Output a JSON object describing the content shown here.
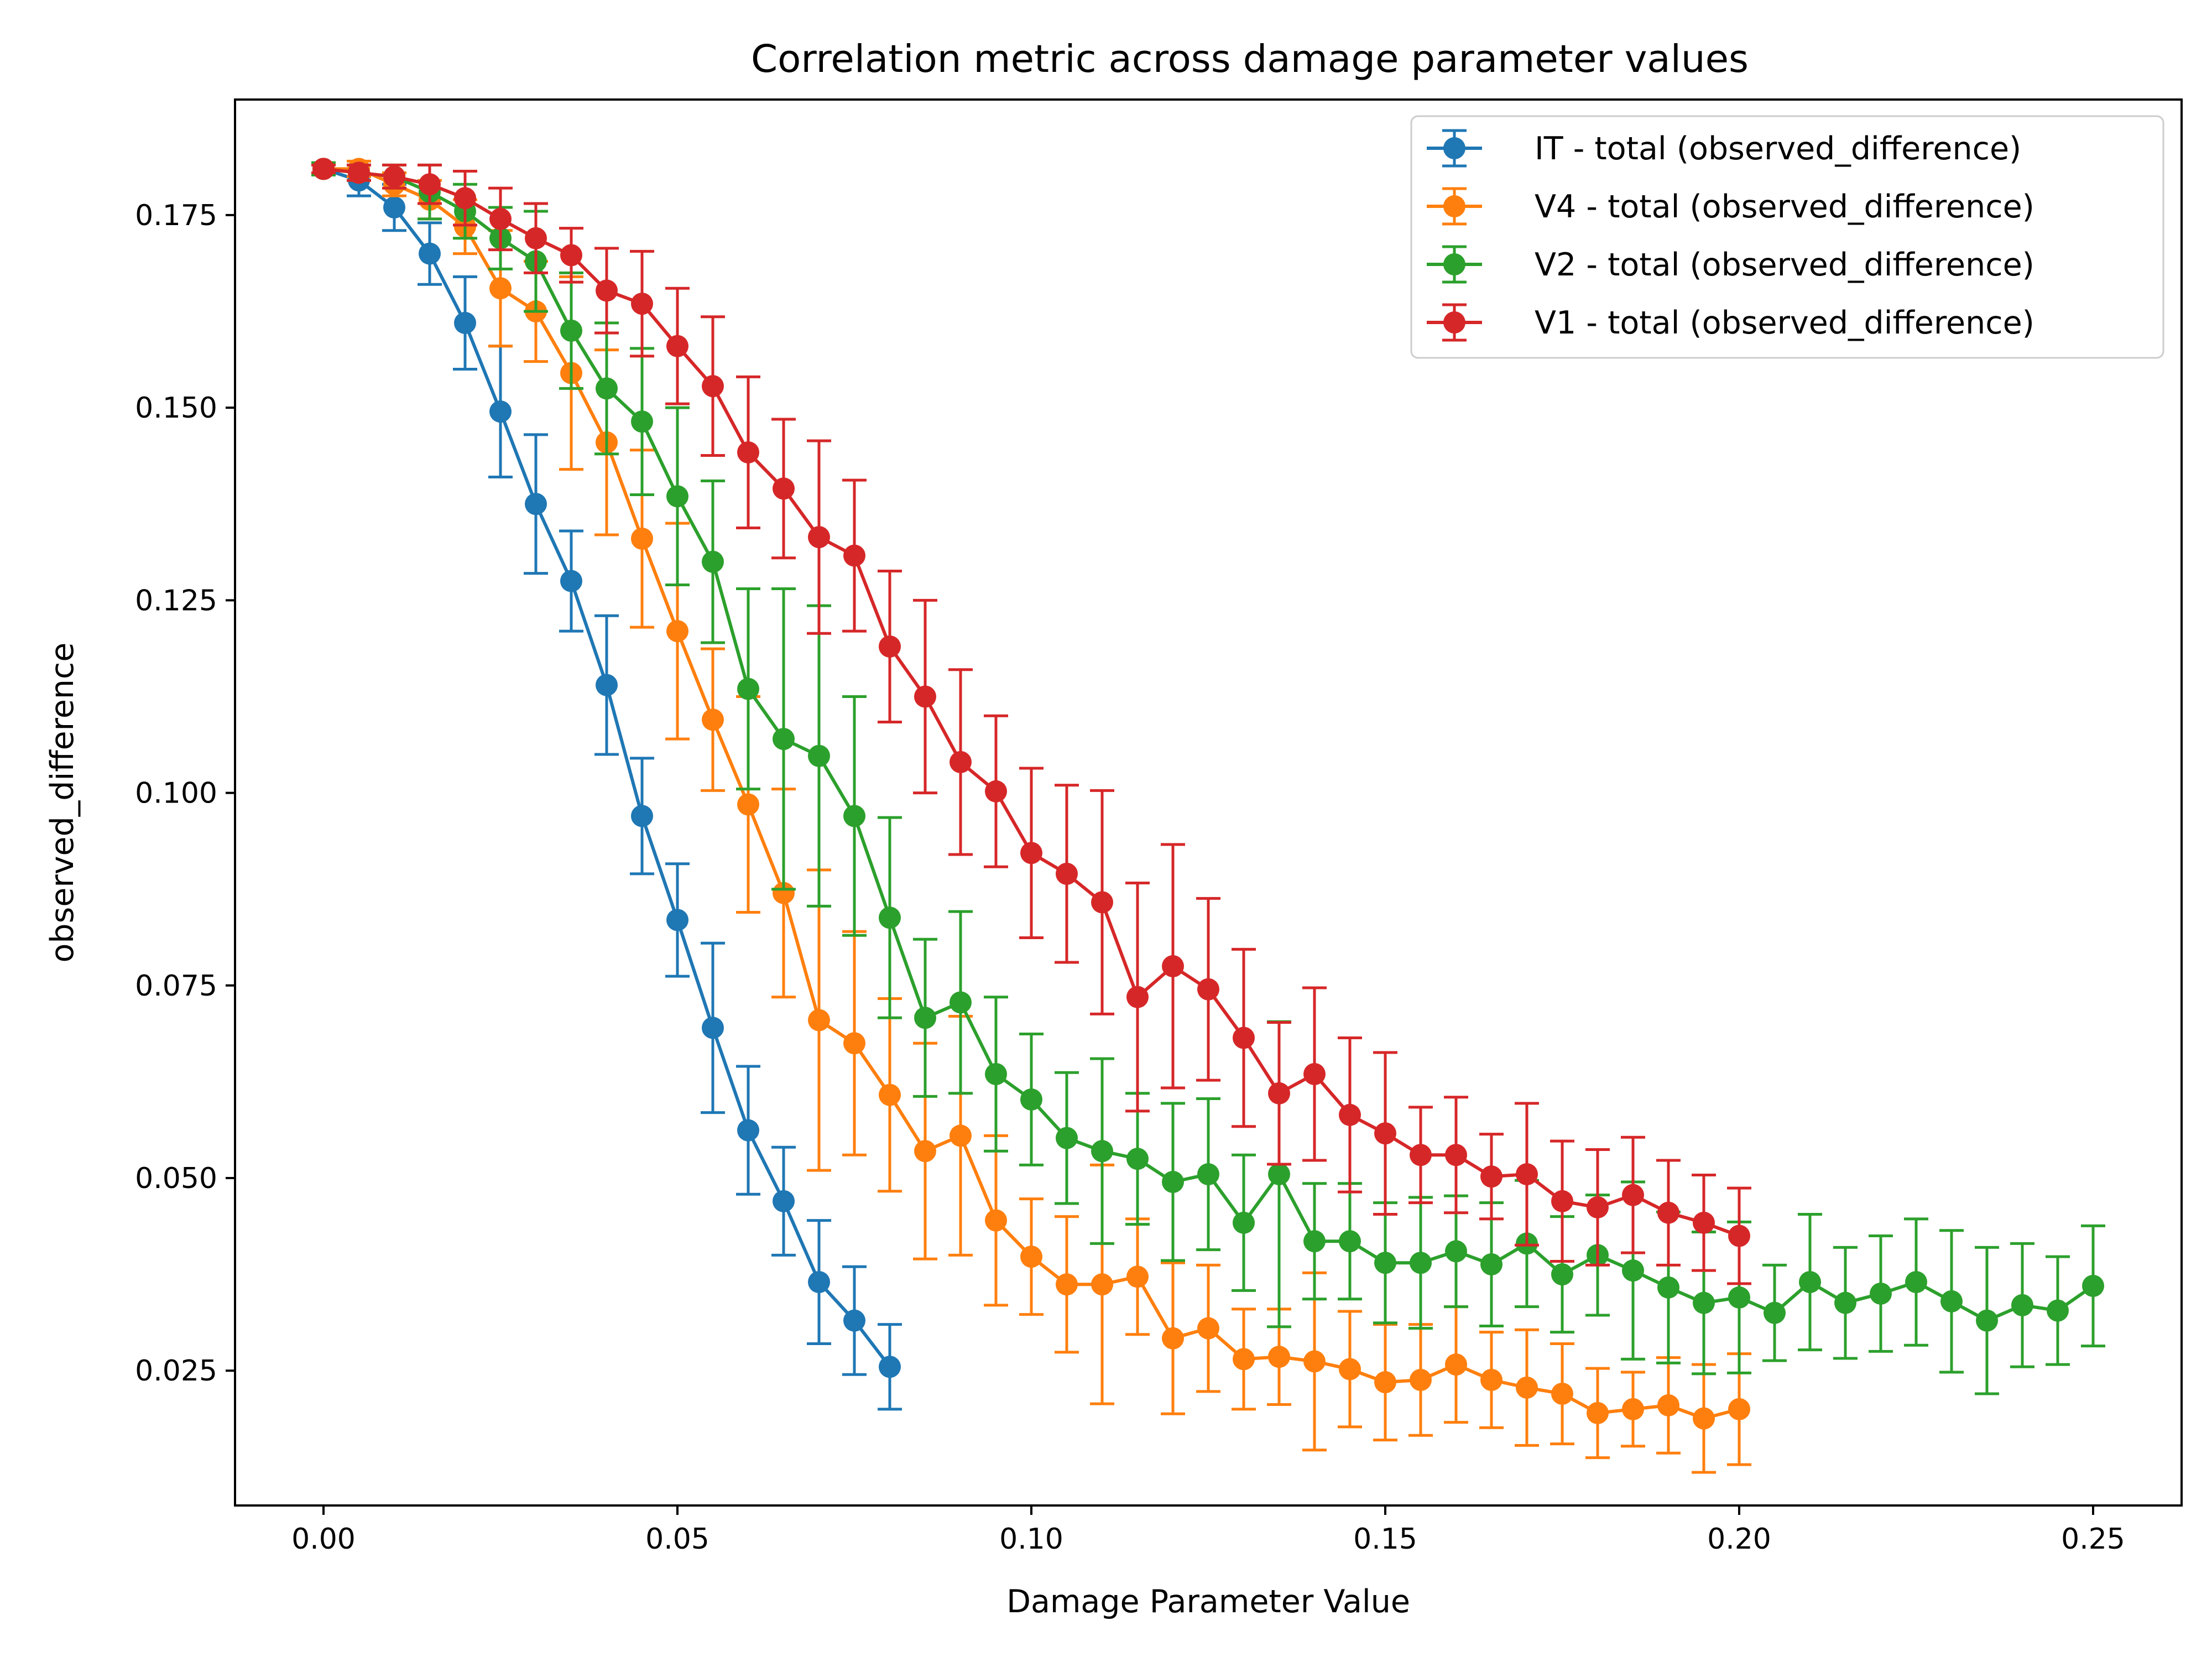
{
  "chart_data": {
    "type": "line",
    "title": "Correlation metric across damage parameter values",
    "xlabel": "Damage Parameter Value",
    "ylabel": "observed_difference",
    "xlim": [
      -0.0125,
      0.2625
    ],
    "ylim": [
      0.0075,
      0.19
    ],
    "xticks": [
      0.0,
      0.05,
      0.1,
      0.15,
      0.2,
      0.25
    ],
    "xtick_labels": [
      "0.00",
      "0.05",
      "0.10",
      "0.15",
      "0.20",
      "0.25"
    ],
    "yticks": [
      0.025,
      0.05,
      0.075,
      0.1,
      0.125,
      0.15,
      0.175
    ],
    "ytick_labels": [
      "0.025",
      "0.050",
      "0.075",
      "0.100",
      "0.125",
      "0.150",
      "0.175"
    ],
    "grid": false,
    "legend_position": "top-right",
    "error_bars": true,
    "series": [
      {
        "name": "IT - total (observed_difference)",
        "color": "#1f77b4",
        "x": [
          0.0,
          0.005,
          0.01,
          0.015,
          0.02,
          0.025,
          0.03,
          0.035,
          0.04,
          0.045,
          0.05,
          0.055,
          0.06,
          0.065,
          0.07,
          0.075,
          0.08
        ],
        "y": [
          0.181,
          0.1795,
          0.176,
          0.17,
          0.161,
          0.1495,
          0.1375,
          0.1275,
          0.114,
          0.097,
          0.0835,
          0.0695,
          0.0562,
          0.047,
          0.0365,
          0.0315,
          0.0255
        ],
        "err": [
          0.0008,
          0.002,
          0.003,
          0.004,
          0.006,
          0.0085,
          0.009,
          0.0065,
          0.009,
          0.0075,
          0.0073,
          0.011,
          0.0083,
          0.007,
          0.008,
          0.007,
          0.0055
        ]
      },
      {
        "name": "V4 - total (observed_difference)",
        "color": "#ff7f0e",
        "x": [
          0.0,
          0.005,
          0.01,
          0.015,
          0.02,
          0.025,
          0.03,
          0.035,
          0.04,
          0.045,
          0.05,
          0.055,
          0.06,
          0.065,
          0.07,
          0.075,
          0.08,
          0.085,
          0.09,
          0.095,
          0.1,
          0.105,
          0.11,
          0.115,
          0.12,
          0.125,
          0.13,
          0.135,
          0.14,
          0.145,
          0.15,
          0.155,
          0.16,
          0.165,
          0.17,
          0.175,
          0.18,
          0.185,
          0.19,
          0.195,
          0.2
        ],
        "y": [
          0.181,
          0.181,
          0.179,
          0.177,
          0.1735,
          0.1655,
          0.1625,
          0.1545,
          0.1455,
          0.133,
          0.121,
          0.1095,
          0.0985,
          0.087,
          0.0705,
          0.0675,
          0.0608,
          0.0535,
          0.0555,
          0.0445,
          0.0398,
          0.0362,
          0.0362,
          0.0372,
          0.0292,
          0.0305,
          0.0265,
          0.0268,
          0.0262,
          0.0252,
          0.0235,
          0.0238,
          0.0258,
          0.0238,
          0.0228,
          0.022,
          0.0195,
          0.02,
          0.0205,
          0.0188,
          0.02
        ],
        "err": [
          0.0008,
          0.001,
          0.0015,
          0.0025,
          0.0035,
          0.0075,
          0.0065,
          0.0125,
          0.012,
          0.0115,
          0.014,
          0.0092,
          0.014,
          0.0135,
          0.0195,
          0.0145,
          0.0125,
          0.014,
          0.0155,
          0.011,
          0.0075,
          0.0088,
          0.0155,
          0.0075,
          0.0098,
          0.0082,
          0.0065,
          0.0062,
          0.0115,
          0.0075,
          0.0075,
          0.0072,
          0.0075,
          0.0062,
          0.0075,
          0.0065,
          0.0058,
          0.0048,
          0.0062,
          0.007,
          0.0072
        ]
      },
      {
        "name": "V2 - total (observed_difference)",
        "color": "#2ca02c",
        "x": [
          0.0,
          0.005,
          0.01,
          0.015,
          0.02,
          0.025,
          0.03,
          0.035,
          0.04,
          0.045,
          0.05,
          0.055,
          0.06,
          0.065,
          0.07,
          0.075,
          0.08,
          0.085,
          0.09,
          0.095,
          0.1,
          0.105,
          0.11,
          0.115,
          0.12,
          0.125,
          0.13,
          0.135,
          0.14,
          0.145,
          0.15,
          0.155,
          0.16,
          0.165,
          0.17,
          0.175,
          0.18,
          0.185,
          0.19,
          0.195,
          0.2,
          0.205,
          0.21,
          0.215,
          0.22,
          0.225,
          0.23,
          0.235,
          0.24,
          0.245,
          0.25
        ],
        "y": [
          0.181,
          0.1805,
          0.18,
          0.178,
          0.1755,
          0.172,
          0.169,
          0.16,
          0.1525,
          0.1482,
          0.1385,
          0.13,
          0.1135,
          0.107,
          0.1048,
          0.097,
          0.0838,
          0.0708,
          0.0728,
          0.0635,
          0.0602,
          0.0552,
          0.0535,
          0.0525,
          0.0495,
          0.0505,
          0.0442,
          0.0505,
          0.0418,
          0.0418,
          0.039,
          0.039,
          0.0405,
          0.0388,
          0.0415,
          0.0375,
          0.04,
          0.038,
          0.0358,
          0.0338,
          0.0345,
          0.0325,
          0.0365,
          0.0338,
          0.035,
          0.0365,
          0.034,
          0.0315,
          0.0335,
          0.0328,
          0.036
        ],
        "err": [
          0.0008,
          0.001,
          0.0015,
          0.0035,
          0.0035,
          0.004,
          0.0065,
          0.0075,
          0.0085,
          0.0095,
          0.0115,
          0.0105,
          0.013,
          0.0195,
          0.0195,
          0.0155,
          0.013,
          0.0102,
          0.0118,
          0.01,
          0.0085,
          0.0085,
          0.012,
          0.0085,
          0.0102,
          0.0098,
          0.0088,
          0.0198,
          0.0075,
          0.0075,
          0.0078,
          0.0085,
          0.0072,
          0.008,
          0.0082,
          0.0075,
          0.0078,
          0.0115,
          0.0098,
          0.0092,
          0.0098,
          0.0062,
          0.0088,
          0.0072,
          0.0075,
          0.0082,
          0.0092,
          0.0095,
          0.008,
          0.007,
          0.0078
        ]
      },
      {
        "name": "V1 - total (observed_difference)",
        "color": "#d62728",
        "x": [
          0.0,
          0.005,
          0.01,
          0.015,
          0.02,
          0.025,
          0.03,
          0.035,
          0.04,
          0.045,
          0.05,
          0.055,
          0.06,
          0.065,
          0.07,
          0.075,
          0.08,
          0.085,
          0.09,
          0.095,
          0.1,
          0.105,
          0.11,
          0.115,
          0.12,
          0.125,
          0.13,
          0.135,
          0.14,
          0.145,
          0.15,
          0.155,
          0.16,
          0.165,
          0.17,
          0.175,
          0.18,
          0.185,
          0.19,
          0.195,
          0.2
        ],
        "y": [
          0.181,
          0.1805,
          0.18,
          0.179,
          0.1772,
          0.1745,
          0.172,
          0.1698,
          0.1652,
          0.1635,
          0.158,
          0.1528,
          0.1442,
          0.1395,
          0.1332,
          0.1308,
          0.119,
          0.1125,
          0.104,
          0.1002,
          0.0922,
          0.0895,
          0.0858,
          0.0735,
          0.0775,
          0.0745,
          0.0682,
          0.061,
          0.0635,
          0.0582,
          0.0558,
          0.053,
          0.053,
          0.0502,
          0.0505,
          0.047,
          0.0462,
          0.0478,
          0.0455,
          0.0442,
          0.0425
        ],
        "err": [
          0.0005,
          0.001,
          0.0015,
          0.0025,
          0.0035,
          0.004,
          0.0045,
          0.0035,
          0.0055,
          0.0068,
          0.0075,
          0.009,
          0.0098,
          0.009,
          0.0125,
          0.0098,
          0.0098,
          0.0125,
          0.012,
          0.0098,
          0.011,
          0.0115,
          0.0145,
          0.0148,
          0.0158,
          0.0118,
          0.0115,
          0.0092,
          0.0112,
          0.01,
          0.0105,
          0.0062,
          0.0075,
          0.0055,
          0.0092,
          0.0078,
          0.0075,
          0.0075,
          0.0068,
          0.0062,
          0.0062
        ]
      }
    ]
  }
}
